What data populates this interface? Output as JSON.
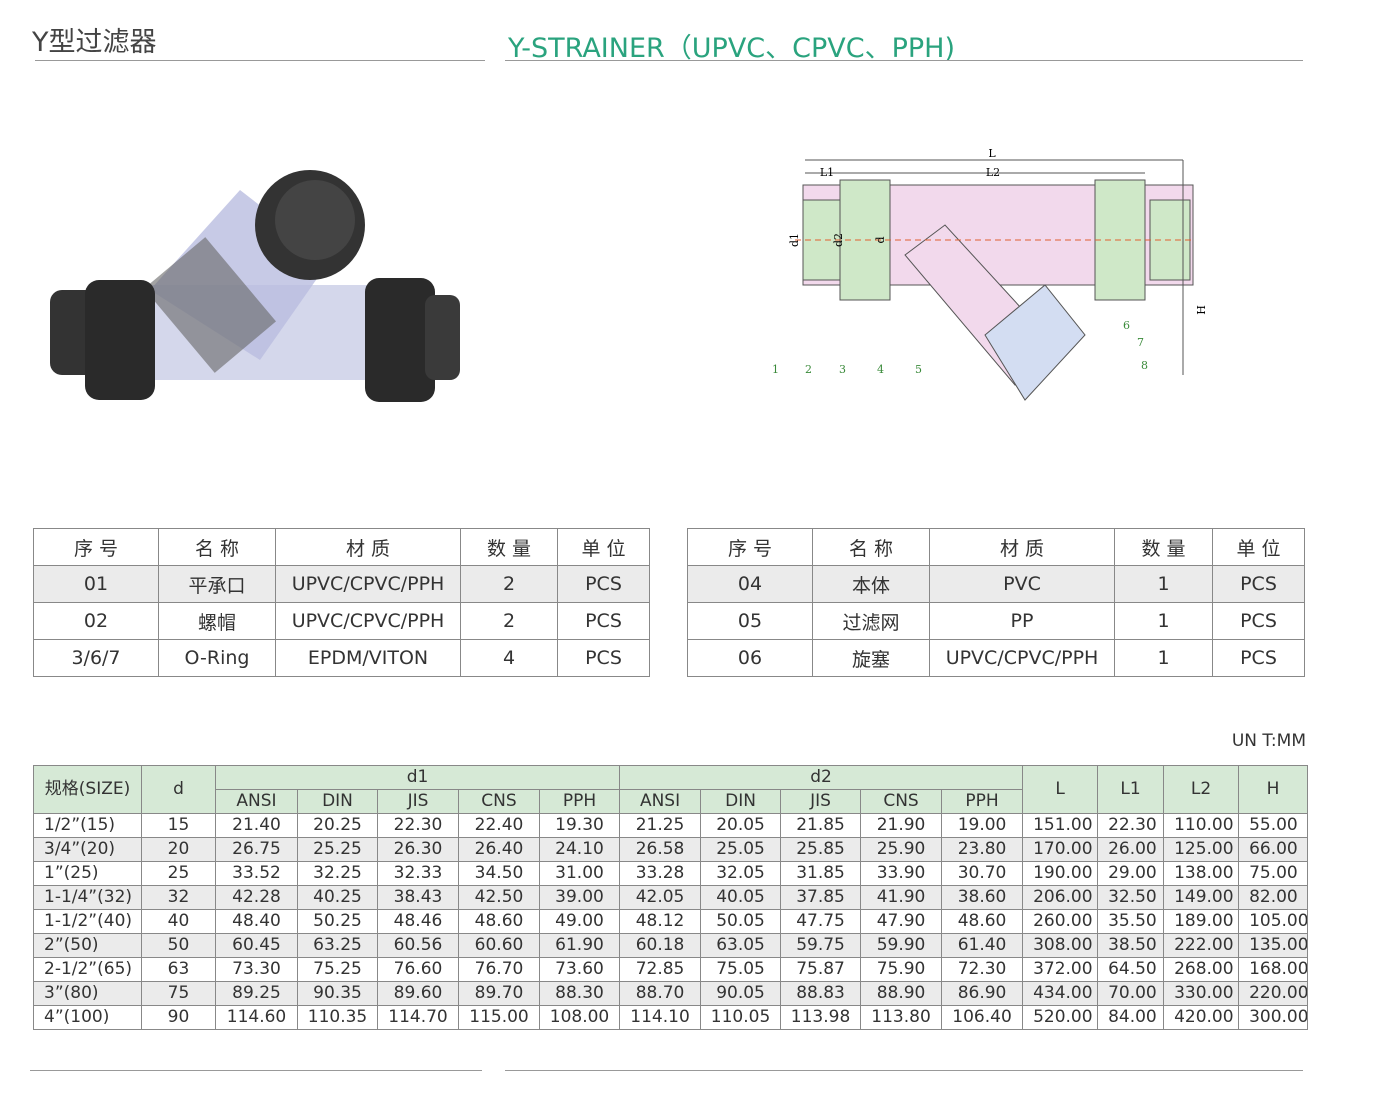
{
  "header": {
    "title_cn": "Y型过滤器",
    "title_en": "Y-STRAINER（UPVC、CPVC、PPH)"
  },
  "diagram": {
    "dimensions": [
      "L",
      "L1",
      "L2",
      "d1",
      "d2",
      "d",
      "H"
    ],
    "callouts": [
      "1",
      "2",
      "3",
      "4",
      "5",
      "6",
      "7",
      "8"
    ]
  },
  "parts_tables": [
    {
      "header": [
        "序 号",
        "名 称",
        "材 质",
        "数 量",
        "单 位"
      ],
      "rows": [
        [
          "01",
          "平承口",
          "UPVC/CPVC/PPH",
          "2",
          "PCS"
        ],
        [
          "02",
          "螺帽",
          "UPVC/CPVC/PPH",
          "2",
          "PCS"
        ],
        [
          "3/6/7",
          "O-Ring",
          "EPDM/VITON",
          "4",
          "PCS"
        ]
      ]
    },
    {
      "header": [
        "序 号",
        "名 称",
        "材 质",
        "数 量",
        "单 位"
      ],
      "rows": [
        [
          "04",
          "本体",
          "PVC",
          "1",
          "PCS"
        ],
        [
          "05",
          "过滤网",
          "PP",
          "1",
          "PCS"
        ],
        [
          "06",
          "旋塞",
          "UPVC/CPVC/PPH",
          "1",
          "PCS"
        ]
      ]
    }
  ],
  "unit": "UN T:MM",
  "spec_table": {
    "header": {
      "size": "规格(SIZE)",
      "d": "d",
      "d1": "d1",
      "d2": "d2",
      "L": "L",
      "L1": "L1",
      "L2": "L2",
      "H": "H",
      "sub_columns": [
        "ANSI",
        "DIN",
        "JIS",
        "CNS",
        "PPH"
      ]
    },
    "rows": [
      [
        "1/2”(15)",
        "15",
        "21.40",
        "20.25",
        "22.30",
        "22.40",
        "19.30",
        "21.25",
        "20.05",
        "21.85",
        "21.90",
        "19.00",
        "151.00",
        "22.30",
        "110.00",
        "55.00"
      ],
      [
        "3/4”(20)",
        "20",
        "26.75",
        "25.25",
        "26.30",
        "26.40",
        "24.10",
        "26.58",
        "25.05",
        "25.85",
        "25.90",
        "23.80",
        "170.00",
        "26.00",
        "125.00",
        "66.00"
      ],
      [
        "1”(25)",
        "25",
        "33.52",
        "32.25",
        "32.33",
        "34.50",
        "31.00",
        "33.28",
        "32.05",
        "31.85",
        "33.90",
        "30.70",
        "190.00",
        "29.00",
        "138.00",
        "75.00"
      ],
      [
        "1-1/4”(32)",
        "32",
        "42.28",
        "40.25",
        "38.43",
        "42.50",
        "39.00",
        "42.05",
        "40.05",
        "37.85",
        "41.90",
        "38.60",
        "206.00",
        "32.50",
        "149.00",
        "82.00"
      ],
      [
        "1-1/2”(40)",
        "40",
        "48.40",
        "50.25",
        "48.46",
        "48.60",
        "49.00",
        "48.12",
        "50.05",
        "47.75",
        "47.90",
        "48.60",
        "260.00",
        "35.50",
        "189.00",
        "105.00"
      ],
      [
        "2”(50)",
        "50",
        "60.45",
        "63.25",
        "60.56",
        "60.60",
        "61.90",
        "60.18",
        "63.05",
        "59.75",
        "59.90",
        "61.40",
        "308.00",
        "38.50",
        "222.00",
        "135.00"
      ],
      [
        "2-1/2”(65)",
        "63",
        "73.30",
        "75.25",
        "76.60",
        "76.70",
        "73.60",
        "72.85",
        "75.05",
        "75.87",
        "75.90",
        "72.30",
        "372.00",
        "64.50",
        "268.00",
        "168.00"
      ],
      [
        "3”(80)",
        "75",
        "89.25",
        "90.35",
        "89.60",
        "89.70",
        "88.30",
        "88.70",
        "90.05",
        "88.83",
        "88.90",
        "86.90",
        "434.00",
        "70.00",
        "330.00",
        "220.00"
      ],
      [
        "4”(100)",
        "90",
        "114.60",
        "110.35",
        "114.70",
        "115.00",
        "108.00",
        "114.10",
        "110.05",
        "113.98",
        "113.80",
        "106.40",
        "520.00",
        "84.00",
        "420.00",
        "300.00"
      ]
    ]
  }
}
